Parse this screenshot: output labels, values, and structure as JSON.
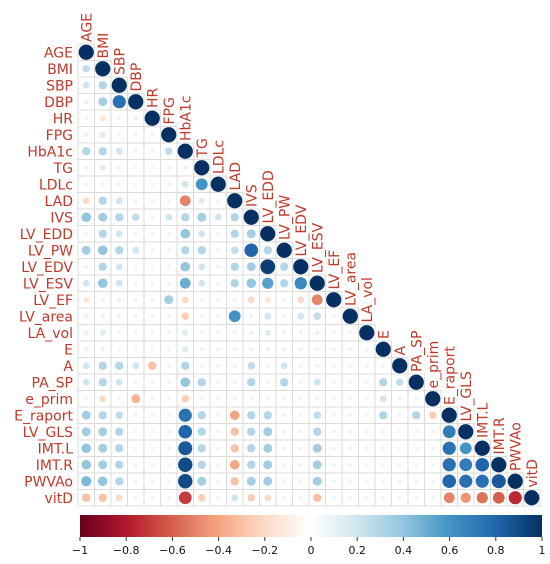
{
  "chart_data": {
    "type": "heatmap",
    "style": "correlation-circle-lower-triangle",
    "variables": [
      "AGE",
      "BMI",
      "SBP",
      "DBP",
      "HR",
      "FPG",
      "HbA1c",
      "TG",
      "LDLc",
      "LAD",
      "IVS",
      "LV_EDD",
      "LV_PW",
      "LV_EDV",
      "LV_ESV",
      "LV_EF",
      "LV_area",
      "LA_vol",
      "E",
      "A",
      "PA_SP",
      "e_prim",
      "E_raport",
      "LV_GLS",
      "IMT.L",
      "IMT.R",
      "PWVAo",
      "vitD"
    ],
    "colorbar": {
      "range": [
        -1,
        1
      ],
      "ticks": [
        "−1",
        "−0.8",
        "−0.6",
        "−0.4",
        "−0.2",
        "0",
        "0.2",
        "0.4",
        "0.6",
        "0.8",
        "1"
      ],
      "colors": [
        "#67001f",
        "#b2182b",
        "#d6604d",
        "#f4a582",
        "#fddbc7",
        "#ffffff",
        "#d1e5f0",
        "#92c5de",
        "#4393c3",
        "#2166ac",
        "#053061"
      ]
    },
    "correlations": [
      {
        "row": "BMI",
        "col": "AGE",
        "r": 0.25
      },
      {
        "row": "SBP",
        "col": "AGE",
        "r": 0.2
      },
      {
        "row": "SBP",
        "col": "BMI",
        "r": 0.3
      },
      {
        "row": "DBP",
        "col": "AGE",
        "r": 0.1
      },
      {
        "row": "DBP",
        "col": "BMI",
        "r": 0.35
      },
      {
        "row": "DBP",
        "col": "SBP",
        "r": 0.75
      },
      {
        "row": "HR",
        "col": "BMI",
        "r": -0.15
      },
      {
        "row": "HR",
        "col": "DBP",
        "r": 0.1
      },
      {
        "row": "FPG",
        "col": "AGE",
        "r": 0.1
      },
      {
        "row": "FPG",
        "col": "BMI",
        "r": 0.15
      },
      {
        "row": "HbA1c",
        "col": "AGE",
        "r": 0.3
      },
      {
        "row": "HbA1c",
        "col": "BMI",
        "r": 0.3
      },
      {
        "row": "HbA1c",
        "col": "SBP",
        "r": 0.2
      },
      {
        "row": "HbA1c",
        "col": "FPG",
        "r": 0.25
      },
      {
        "row": "TG",
        "col": "BMI",
        "r": 0.15
      },
      {
        "row": "TG",
        "col": "HbA1c",
        "r": 0.1
      },
      {
        "row": "LDLc",
        "col": "HbA1c",
        "r": 0.2
      },
      {
        "row": "LDLc",
        "col": "TG",
        "r": 0.6
      },
      {
        "row": "LAD",
        "col": "AGE",
        "r": -0.2
      },
      {
        "row": "LAD",
        "col": "BMI",
        "r": 0.3
      },
      {
        "row": "LAD",
        "col": "SBP",
        "r": 0.2
      },
      {
        "row": "LAD",
        "col": "HbA1c",
        "r": -0.5
      },
      {
        "row": "LAD",
        "col": "TG",
        "r": 0.15
      },
      {
        "row": "IVS",
        "col": "AGE",
        "r": 0.4
      },
      {
        "row": "IVS",
        "col": "BMI",
        "r": 0.35
      },
      {
        "row": "IVS",
        "col": "SBP",
        "r": 0.3
      },
      {
        "row": "IVS",
        "col": "DBP",
        "r": 0.25
      },
      {
        "row": "IVS",
        "col": "FPG",
        "r": 0.2
      },
      {
        "row": "IVS",
        "col": "HbA1c",
        "r": 0.3
      },
      {
        "row": "IVS",
        "col": "TG",
        "r": 0.35
      },
      {
        "row": "IVS",
        "col": "LDLc",
        "r": 0.2
      },
      {
        "row": "IVS",
        "col": "LAD",
        "r": 0.3
      },
      {
        "row": "LV_EDD",
        "col": "BMI",
        "r": 0.3
      },
      {
        "row": "LV_EDD",
        "col": "SBP",
        "r": 0.2
      },
      {
        "row": "LV_EDD",
        "col": "HbA1c",
        "r": 0.4
      },
      {
        "row": "LV_EDD",
        "col": "TG",
        "r": 0.2
      },
      {
        "row": "LV_EDD",
        "col": "LAD",
        "r": 0.3
      },
      {
        "row": "LV_EDD",
        "col": "IVS",
        "r": 0.35
      },
      {
        "row": "LV_PW",
        "col": "AGE",
        "r": 0.35
      },
      {
        "row": "LV_PW",
        "col": "BMI",
        "r": 0.4
      },
      {
        "row": "LV_PW",
        "col": "SBP",
        "r": 0.3
      },
      {
        "row": "LV_PW",
        "col": "DBP",
        "r": 0.2
      },
      {
        "row": "LV_PW",
        "col": "HbA1c",
        "r": 0.3
      },
      {
        "row": "LV_PW",
        "col": "TG",
        "r": 0.3
      },
      {
        "row": "LV_PW",
        "col": "LAD",
        "r": 0.25
      },
      {
        "row": "LV_PW",
        "col": "IVS",
        "r": 0.8
      },
      {
        "row": "LV_PW",
        "col": "LV_EDD",
        "r": 0.3
      },
      {
        "row": "LV_EDV",
        "col": "BMI",
        "r": 0.3
      },
      {
        "row": "LV_EDV",
        "col": "SBP",
        "r": 0.2
      },
      {
        "row": "LV_EDV",
        "col": "HbA1c",
        "r": 0.4
      },
      {
        "row": "LV_EDV",
        "col": "TG",
        "r": 0.2
      },
      {
        "row": "LV_EDV",
        "col": "LAD",
        "r": 0.3
      },
      {
        "row": "LV_EDV",
        "col": "IVS",
        "r": 0.35
      },
      {
        "row": "LV_EDV",
        "col": "LV_EDD",
        "r": 0.95
      },
      {
        "row": "LV_EDV",
        "col": "LV_PW",
        "r": 0.3
      },
      {
        "row": "LV_ESV",
        "col": "AGE",
        "r": 0.2
      },
      {
        "row": "LV_ESV",
        "col": "BMI",
        "r": 0.4
      },
      {
        "row": "LV_ESV",
        "col": "SBP",
        "r": 0.2
      },
      {
        "row": "LV_ESV",
        "col": "HbA1c",
        "r": 0.5
      },
      {
        "row": "LV_ESV",
        "col": "TG",
        "r": 0.2
      },
      {
        "row": "LV_ESV",
        "col": "LAD",
        "r": 0.3
      },
      {
        "row": "LV_ESV",
        "col": "IVS",
        "r": 0.4
      },
      {
        "row": "LV_ESV",
        "col": "LV_EDD",
        "r": 0.55
      },
      {
        "row": "LV_ESV",
        "col": "LV_PW",
        "r": 0.3
      },
      {
        "row": "LV_ESV",
        "col": "LV_EDV",
        "r": 0.65
      },
      {
        "row": "LV_EF",
        "col": "AGE",
        "r": -0.15
      },
      {
        "row": "LV_EF",
        "col": "SBP",
        "r": -0.1
      },
      {
        "row": "LV_EF",
        "col": "FPG",
        "r": 0.35
      },
      {
        "row": "LV_EF",
        "col": "HbA1c",
        "r": -0.2
      },
      {
        "row": "LV_EF",
        "col": "IVS",
        "r": -0.2
      },
      {
        "row": "LV_EF",
        "col": "LV_EDD",
        "r": -0.15
      },
      {
        "row": "LV_EF",
        "col": "LV_EDV",
        "r": -0.2
      },
      {
        "row": "LV_EF",
        "col": "LV_ESV",
        "r": -0.5
      },
      {
        "row": "LV_area",
        "col": "AGE",
        "r": -0.1
      },
      {
        "row": "LV_area",
        "col": "HbA1c",
        "r": -0.25
      },
      {
        "row": "LV_area",
        "col": "LAD",
        "r": 0.6
      },
      {
        "row": "LV_area",
        "col": "LV_EDD",
        "r": 0.2
      },
      {
        "row": "LV_area",
        "col": "LV_EDV",
        "r": 0.2
      },
      {
        "row": "LV_area",
        "col": "LV_ESV",
        "r": 0.25
      },
      {
        "row": "LA_vol",
        "col": "AGE",
        "r": 0.1
      },
      {
        "row": "LA_vol",
        "col": "BMI",
        "r": 0.15
      },
      {
        "row": "LA_vol",
        "col": "HbA1c",
        "r": 0.15
      },
      {
        "row": "LA_vol",
        "col": "IVS",
        "r": 0.1
      },
      {
        "row": "LA_vol",
        "col": "LV_EDD",
        "r": 0.15
      },
      {
        "row": "LA_vol",
        "col": "LV_ESV",
        "r": 0.1
      },
      {
        "row": "E",
        "col": "AGE",
        "r": -0.1
      },
      {
        "row": "E",
        "col": "BMI",
        "r": -0.1
      },
      {
        "row": "E",
        "col": "HbA1c",
        "r": 0.15
      },
      {
        "row": "E",
        "col": "LV_EDD",
        "r": 0.1
      },
      {
        "row": "A",
        "col": "AGE",
        "r": 0.2
      },
      {
        "row": "A",
        "col": "BMI",
        "r": 0.3
      },
      {
        "row": "A",
        "col": "SBP",
        "r": 0.3
      },
      {
        "row": "A",
        "col": "DBP",
        "r": 0.2
      },
      {
        "row": "A",
        "col": "HR",
        "r": -0.3
      },
      {
        "row": "A",
        "col": "HbA1c",
        "r": 0.3
      },
      {
        "row": "A",
        "col": "IVS",
        "r": 0.25
      },
      {
        "row": "A",
        "col": "LV_PW",
        "r": 0.2
      },
      {
        "row": "PA_SP",
        "col": "AGE",
        "r": 0.2
      },
      {
        "row": "PA_SP",
        "col": "BMI",
        "r": 0.3
      },
      {
        "row": "PA_SP",
        "col": "SBP",
        "r": 0.2
      },
      {
        "row": "PA_SP",
        "col": "HbA1c",
        "r": 0.4
      },
      {
        "row": "PA_SP",
        "col": "TG",
        "r": 0.3
      },
      {
        "row": "PA_SP",
        "col": "IVS",
        "r": 0.3
      },
      {
        "row": "PA_SP",
        "col": "LV_PW",
        "r": 0.3
      },
      {
        "row": "PA_SP",
        "col": "LV_ESV",
        "r": 0.2
      },
      {
        "row": "PA_SP",
        "col": "E",
        "r": 0.3
      },
      {
        "row": "PA_SP",
        "col": "A",
        "r": 0.25
      },
      {
        "row": "e_prim",
        "col": "BMI",
        "r": -0.2
      },
      {
        "row": "e_prim",
        "col": "DBP",
        "r": -0.35
      },
      {
        "row": "e_prim",
        "col": "HbA1c",
        "r": -0.25
      },
      {
        "row": "e_prim",
        "col": "E",
        "r": 0.2
      },
      {
        "row": "E_raport",
        "col": "AGE",
        "r": 0.35
      },
      {
        "row": "E_raport",
        "col": "BMI",
        "r": 0.3
      },
      {
        "row": "E_raport",
        "col": "SBP",
        "r": 0.25
      },
      {
        "row": "E_raport",
        "col": "HbA1c",
        "r": 0.75
      },
      {
        "row": "E_raport",
        "col": "TG",
        "r": 0.3
      },
      {
        "row": "E_raport",
        "col": "LAD",
        "r": -0.4
      },
      {
        "row": "E_raport",
        "col": "IVS",
        "r": 0.3
      },
      {
        "row": "E_raport",
        "col": "LV_EDD",
        "r": 0.3
      },
      {
        "row": "E_raport",
        "col": "LV_ESV",
        "r": 0.25
      },
      {
        "row": "E_raport",
        "col": "E",
        "r": 0.3
      },
      {
        "row": "E_raport",
        "col": "PA_SP",
        "r": 0.3
      },
      {
        "row": "E_raport",
        "col": "e_prim",
        "r": -0.25
      },
      {
        "row": "LV_GLS",
        "col": "AGE",
        "r": 0.35
      },
      {
        "row": "LV_GLS",
        "col": "BMI",
        "r": 0.35
      },
      {
        "row": "LV_GLS",
        "col": "SBP",
        "r": 0.3
      },
      {
        "row": "LV_GLS",
        "col": "HbA1c",
        "r": 0.8
      },
      {
        "row": "LV_GLS",
        "col": "TG",
        "r": 0.3
      },
      {
        "row": "LV_GLS",
        "col": "LAD",
        "r": -0.3
      },
      {
        "row": "LV_GLS",
        "col": "IVS",
        "r": 0.3
      },
      {
        "row": "LV_GLS",
        "col": "LV_EDD",
        "r": 0.35
      },
      {
        "row": "LV_GLS",
        "col": "LV_ESV",
        "r": 0.3
      },
      {
        "row": "LV_GLS",
        "col": "E_raport",
        "r": 0.7
      },
      {
        "row": "IMT.L",
        "col": "AGE",
        "r": 0.4
      },
      {
        "row": "IMT.L",
        "col": "BMI",
        "r": 0.35
      },
      {
        "row": "IMT.L",
        "col": "SBP",
        "r": 0.3
      },
      {
        "row": "IMT.L",
        "col": "HbA1c",
        "r": 0.85
      },
      {
        "row": "IMT.L",
        "col": "TG",
        "r": 0.3
      },
      {
        "row": "IMT.L",
        "col": "LAD",
        "r": -0.3
      },
      {
        "row": "IMT.L",
        "col": "IVS",
        "r": 0.3
      },
      {
        "row": "IMT.L",
        "col": "LV_EDD",
        "r": 0.35
      },
      {
        "row": "IMT.L",
        "col": "LV_ESV",
        "r": 0.35
      },
      {
        "row": "IMT.L",
        "col": "E_raport",
        "r": 0.75
      },
      {
        "row": "IMT.L",
        "col": "LV_GLS",
        "r": 0.6
      },
      {
        "row": "IMT.R",
        "col": "AGE",
        "r": 0.4
      },
      {
        "row": "IMT.R",
        "col": "BMI",
        "r": 0.35
      },
      {
        "row": "IMT.R",
        "col": "SBP",
        "r": 0.3
      },
      {
        "row": "IMT.R",
        "col": "HbA1c",
        "r": 0.9
      },
      {
        "row": "IMT.R",
        "col": "TG",
        "r": 0.3
      },
      {
        "row": "IMT.R",
        "col": "LAD",
        "r": -0.4
      },
      {
        "row": "IMT.R",
        "col": "IVS",
        "r": 0.3
      },
      {
        "row": "IMT.R",
        "col": "LV_EDD",
        "r": 0.35
      },
      {
        "row": "IMT.R",
        "col": "LV_ESV",
        "r": 0.35
      },
      {
        "row": "IMT.R",
        "col": "E_raport",
        "r": 0.75
      },
      {
        "row": "IMT.R",
        "col": "LV_GLS",
        "r": 0.7
      },
      {
        "row": "IMT.R",
        "col": "IMT.L",
        "r": 0.8
      },
      {
        "row": "PWVAo",
        "col": "AGE",
        "r": 0.45
      },
      {
        "row": "PWVAo",
        "col": "BMI",
        "r": 0.4
      },
      {
        "row": "PWVAo",
        "col": "SBP",
        "r": 0.3
      },
      {
        "row": "PWVAo",
        "col": "HbA1c",
        "r": 0.9
      },
      {
        "row": "PWVAo",
        "col": "TG",
        "r": 0.35
      },
      {
        "row": "PWVAo",
        "col": "LAD",
        "r": -0.3
      },
      {
        "row": "PWVAo",
        "col": "IVS",
        "r": 0.35
      },
      {
        "row": "PWVAo",
        "col": "LV_EDD",
        "r": 0.35
      },
      {
        "row": "PWVAo",
        "col": "LV_ESV",
        "r": 0.35
      },
      {
        "row": "PWVAo",
        "col": "E_raport",
        "r": 0.8
      },
      {
        "row": "PWVAo",
        "col": "LV_GLS",
        "r": 0.75
      },
      {
        "row": "PWVAo",
        "col": "IMT.L",
        "r": 0.75
      },
      {
        "row": "PWVAo",
        "col": "IMT.R",
        "r": 0.85
      },
      {
        "row": "vitD",
        "col": "AGE",
        "r": -0.3
      },
      {
        "row": "vitD",
        "col": "BMI",
        "r": -0.3
      },
      {
        "row": "vitD",
        "col": "SBP",
        "r": -0.2
      },
      {
        "row": "vitD",
        "col": "HbA1c",
        "r": -0.7
      },
      {
        "row": "vitD",
        "col": "TG",
        "r": -0.25
      },
      {
        "row": "vitD",
        "col": "LAD",
        "r": 0.2
      },
      {
        "row": "vitD",
        "col": "IVS",
        "r": -0.25
      },
      {
        "row": "vitD",
        "col": "LV_EDD",
        "r": -0.2
      },
      {
        "row": "vitD",
        "col": "LV_ESV",
        "r": -0.3
      },
      {
        "row": "vitD",
        "col": "E_raport",
        "r": -0.5
      },
      {
        "row": "vitD",
        "col": "LV_GLS",
        "r": -0.45
      },
      {
        "row": "vitD",
        "col": "IMT.L",
        "r": -0.55
      },
      {
        "row": "vitD",
        "col": "IMT.R",
        "r": -0.6
      },
      {
        "row": "vitD",
        "col": "PWVAo",
        "r": -0.75
      }
    ]
  }
}
